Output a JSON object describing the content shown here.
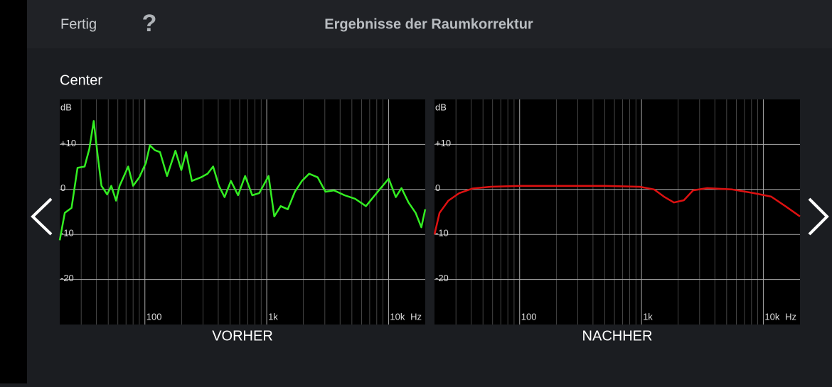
{
  "header": {
    "done": "Fertig",
    "help": "?",
    "title": "Ergebnisse der Raumkorrektur"
  },
  "section": "Center",
  "chart_data": [
    {
      "type": "line",
      "title": "VORHER",
      "ylabel": "dB",
      "xlabel": "Hz",
      "xscale": "log",
      "grid": true,
      "xlim": [
        20,
        20000
      ],
      "ylim": [
        -30,
        20
      ],
      "xticks": [
        100,
        {
          "value": 1000,
          "label": "1k"
        },
        {
          "value": 10000,
          "label": "10k"
        }
      ],
      "yticks": [
        {
          "value": 10,
          "label": "+10"
        },
        0,
        -10,
        -20
      ],
      "xgrid_minor": [
        30,
        40,
        50,
        60,
        70,
        80,
        90,
        200,
        300,
        400,
        500,
        600,
        700,
        800,
        900,
        2000,
        3000,
        4000,
        5000,
        6000,
        7000,
        8000,
        9000
      ],
      "x": [
        20,
        22,
        25,
        28,
        32,
        35,
        38,
        41,
        44,
        49,
        53,
        58,
        62,
        73,
        80,
        90,
        102,
        110,
        121,
        133,
        152,
        178,
        199,
        218,
        243,
        289,
        327,
        363,
        405,
        451,
        508,
        582,
        665,
        760,
        869,
        1036,
        1154,
        1301,
        1489,
        1702,
        1946,
        2227,
        2618,
        3035,
        3564,
        4358,
        5334,
        6522,
        7981,
        10024,
        11465,
        12767,
        14591,
        16676,
        18580,
        20000
      ],
      "series": [
        {
          "color": "#33ee22",
          "values": [
            -11.3,
            -5.2,
            -4.1,
            4.8,
            5.1,
            9,
            15.2,
            7.5,
            0.8,
            -1.1,
            0.8,
            -2.5,
            0.8,
            5.1,
            0.8,
            2.7,
            5.9,
            9.8,
            8.7,
            8.3,
            3,
            8.6,
            4.3,
            8.3,
            1.9,
            2.7,
            3.5,
            5.1,
            0.8,
            -1.7,
            1.9,
            -1.3,
            3,
            -1.3,
            -0.8,
            3,
            -6,
            -3.7,
            -4.4,
            -0.5,
            1.9,
            3.5,
            2.7,
            -0.5,
            -0.2,
            -1.3,
            -2.1,
            -3.7,
            -0.8,
            2.4,
            -1.7,
            0.3,
            -2.9,
            -5.2,
            -8.4,
            -4.4
          ]
        }
      ]
    },
    {
      "type": "line",
      "title": "NACHHER",
      "ylabel": "dB",
      "xlabel": "Hz",
      "xscale": "log",
      "grid": true,
      "xlim": [
        20,
        20000
      ],
      "ylim": [
        -30,
        20
      ],
      "xticks": [
        100,
        {
          "value": 1000,
          "label": "1k"
        },
        {
          "value": 10000,
          "label": "10k"
        }
      ],
      "yticks": [
        {
          "value": 10,
          "label": "+10"
        },
        0,
        -10,
        -20
      ],
      "xgrid_minor": [
        30,
        40,
        50,
        60,
        70,
        80,
        90,
        200,
        300,
        400,
        500,
        600,
        700,
        800,
        900,
        2000,
        3000,
        4000,
        5000,
        6000,
        7000,
        8000,
        9000
      ],
      "x": [
        20,
        22,
        26,
        32,
        41,
        58,
        100,
        252,
        495,
        968,
        1268,
        1550,
        1845,
        2227,
        2650,
        3467,
        5547,
        8298,
        11610,
        15170,
        20000
      ],
      "series": [
        {
          "color": "#dd1111",
          "values": [
            -10,
            -5.2,
            -2.5,
            -0.8,
            0.2,
            0.6,
            0.8,
            0.8,
            0.8,
            0.6,
            0,
            -1.7,
            -2.9,
            -2.4,
            -0.2,
            0.3,
            0,
            -0.8,
            -1.6,
            -3.7,
            -6
          ]
        }
      ]
    }
  ]
}
